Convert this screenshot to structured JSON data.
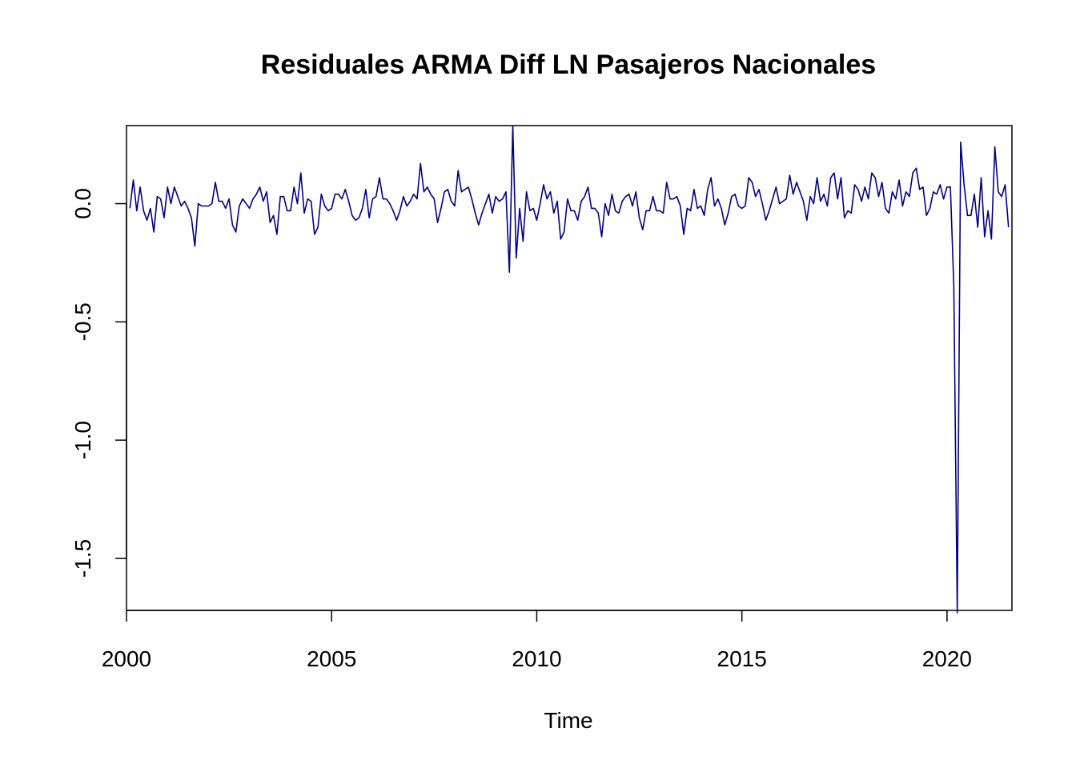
{
  "chart_data": {
    "type": "line",
    "title": "Residuales ARMA Diff LN Pasajeros Nacionales",
    "xlabel": "Time",
    "ylabel": "",
    "xlim": [
      2000,
      2021.583
    ],
    "ylim": [
      -1.72,
      0.33
    ],
    "xticks": [
      2000,
      2005,
      2010,
      2015,
      2020
    ],
    "xtick_labels": [
      "2000",
      "2005",
      "2010",
      "2015",
      "2020"
    ],
    "yticks": [
      -1.5,
      -1.0,
      -0.5,
      0.0
    ],
    "ytick_labels": [
      "-1.5",
      "-1.0",
      "-0.5",
      "0.0"
    ],
    "grid": false,
    "legend": "none",
    "colors": {
      "line": "#000080",
      "axes": "#000000",
      "background": "#ffffff"
    },
    "series": [
      {
        "start": 2000.083,
        "frequency": 12,
        "values": [
          -0.02,
          0.1,
          -0.03,
          0.07,
          -0.03,
          -0.07,
          -0.02,
          -0.12,
          0.03,
          0.02,
          -0.06,
          0.07,
          0.0,
          0.07,
          0.03,
          -0.01,
          0.01,
          -0.02,
          -0.06,
          -0.18,
          0.0,
          -0.01,
          -0.01,
          -0.01,
          0.0,
          0.09,
          0.01,
          0.01,
          -0.02,
          0.02,
          -0.09,
          -0.12,
          -0.01,
          0.02,
          0.0,
          -0.02,
          0.02,
          0.04,
          0.07,
          0.01,
          0.05,
          -0.08,
          -0.05,
          -0.13,
          0.03,
          0.03,
          -0.03,
          -0.03,
          0.07,
          0.0,
          0.13,
          -0.04,
          0.02,
          0.01,
          -0.13,
          -0.1,
          0.04,
          -0.01,
          -0.03,
          -0.02,
          0.04,
          0.04,
          0.02,
          0.06,
          0.01,
          -0.05,
          -0.07,
          -0.06,
          -0.02,
          0.06,
          -0.06,
          0.02,
          0.03,
          0.11,
          0.02,
          0.02,
          0.0,
          -0.03,
          -0.07,
          -0.03,
          0.03,
          -0.01,
          0.01,
          0.04,
          0.02,
          0.17,
          0.05,
          0.07,
          0.04,
          0.02,
          -0.08,
          -0.02,
          0.05,
          0.06,
          0.01,
          -0.01,
          0.14,
          0.05,
          0.06,
          0.07,
          0.02,
          -0.04,
          -0.09,
          -0.04,
          0.0,
          0.04,
          -0.04,
          0.03,
          0.01,
          0.02,
          0.05,
          -0.29,
          0.33,
          -0.23,
          -0.02,
          -0.16,
          0.05,
          -0.03,
          -0.02,
          -0.07,
          0.0,
          0.08,
          0.02,
          0.05,
          -0.04,
          0.01,
          -0.15,
          -0.12,
          0.02,
          -0.03,
          -0.03,
          -0.07,
          0.01,
          0.03,
          0.07,
          -0.02,
          -0.02,
          -0.04,
          -0.14,
          0.0,
          -0.05,
          0.04,
          -0.03,
          -0.04,
          0.01,
          0.03,
          0.04,
          -0.01,
          0.05,
          -0.06,
          -0.11,
          -0.03,
          -0.03,
          0.03,
          -0.03,
          -0.03,
          -0.04,
          0.09,
          0.02,
          0.02,
          0.03,
          -0.01,
          -0.13,
          -0.02,
          -0.03,
          0.06,
          -0.02,
          -0.01,
          -0.05,
          0.06,
          0.11,
          -0.01,
          0.02,
          -0.02,
          -0.09,
          -0.04,
          0.03,
          0.04,
          -0.01,
          -0.02,
          -0.01,
          0.11,
          0.09,
          0.03,
          0.06,
          0.0,
          -0.07,
          -0.03,
          0.02,
          0.07,
          0.0,
          0.01,
          0.02,
          0.12,
          0.04,
          0.09,
          0.05,
          0.01,
          -0.07,
          0.03,
          0.0,
          0.11,
          0.01,
          0.04,
          -0.01,
          0.11,
          0.13,
          0.02,
          0.11,
          -0.06,
          -0.03,
          -0.04,
          0.08,
          0.06,
          0.01,
          0.07,
          0.02,
          0.13,
          0.11,
          0.03,
          0.09,
          -0.02,
          -0.04,
          0.05,
          0.02,
          0.1,
          -0.01,
          0.05,
          0.03,
          0.13,
          0.15,
          0.06,
          0.07,
          -0.05,
          -0.02,
          0.05,
          0.04,
          0.08,
          0.02,
          0.07,
          0.07,
          -0.35,
          -1.73,
          0.26,
          0.08,
          -0.05,
          -0.05,
          0.04,
          -0.1,
          0.11,
          -0.14,
          -0.03,
          -0.15,
          0.24,
          0.05,
          0.03,
          0.08,
          -0.1
        ]
      }
    ]
  }
}
